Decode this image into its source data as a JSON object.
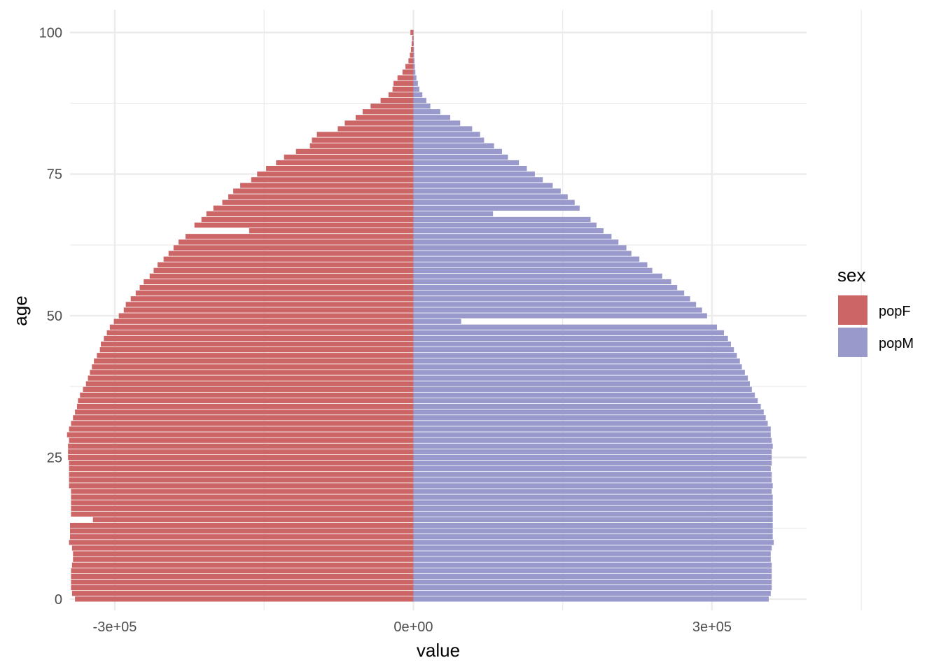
{
  "chart_data": {
    "type": "bar",
    "orientation": "horizontal",
    "title": "",
    "xlabel": "value",
    "ylabel": "age",
    "xlim": [
      -345000,
      395000
    ],
    "ylim": [
      -2,
      104
    ],
    "x_ticks": [
      {
        "value": -300000,
        "label": "-3e+05"
      },
      {
        "value": 0,
        "label": "0e+00"
      },
      {
        "value": 300000,
        "label": "3e+05"
      }
    ],
    "y_ticks": [
      {
        "value": 0,
        "label": "0"
      },
      {
        "value": 25,
        "label": "25"
      },
      {
        "value": 50,
        "label": "50"
      },
      {
        "value": 75,
        "label": "75"
      },
      {
        "value": 100,
        "label": "100"
      }
    ],
    "grid": true,
    "legend": {
      "title": "sex",
      "position": "right"
    },
    "ages": [
      0,
      1,
      2,
      3,
      4,
      5,
      6,
      7,
      8,
      9,
      10,
      11,
      12,
      13,
      14,
      15,
      16,
      17,
      18,
      19,
      20,
      21,
      22,
      23,
      24,
      25,
      26,
      27,
      28,
      29,
      30,
      31,
      32,
      33,
      34,
      35,
      36,
      37,
      38,
      39,
      40,
      41,
      42,
      43,
      44,
      45,
      46,
      47,
      48,
      49,
      50,
      51,
      52,
      53,
      54,
      55,
      56,
      57,
      58,
      59,
      60,
      61,
      62,
      63,
      64,
      65,
      66,
      67,
      68,
      69,
      70,
      71,
      72,
      73,
      74,
      75,
      76,
      77,
      78,
      79,
      80,
      81,
      82,
      83,
      84,
      85,
      86,
      87,
      88,
      89,
      90,
      91,
      92,
      93,
      94,
      95,
      96,
      97,
      98,
      99,
      100
    ],
    "series": [
      {
        "name": "popF",
        "color": "#cc6666",
        "values": [
          -340000,
          -343000,
          -344000,
          -344000,
          -344000,
          -344000,
          -343000,
          -342000,
          -342000,
          -343000,
          -346000,
          -345000,
          -345000,
          -345000,
          -322000,
          -344000,
          -344000,
          -344000,
          -344000,
          -344000,
          -346000,
          -346000,
          -346000,
          -346000,
          -346000,
          -347000,
          -347000,
          -347000,
          -346000,
          -348000,
          -346000,
          -344000,
          -342000,
          -340000,
          -338000,
          -337000,
          -335000,
          -332000,
          -329000,
          -327000,
          -325000,
          -323000,
          -321000,
          -318000,
          -315000,
          -314000,
          -311000,
          -308000,
          -305000,
          -301000,
          -296000,
          -291000,
          -289000,
          -284000,
          -279000,
          -275000,
          -271000,
          -265000,
          -261000,
          -257000,
          -251000,
          -246000,
          -241000,
          -236000,
          -229000,
          -165000,
          -220000,
          -213000,
          -208000,
          -201000,
          -192000,
          -186000,
          -181000,
          -174000,
          -163000,
          -157000,
          -148000,
          -138000,
          -130000,
          -118000,
          -104000,
          -102000,
          -97000,
          -76000,
          -69000,
          -58000,
          -51000,
          -43000,
          -33000,
          -25000,
          -21000,
          -20000,
          -16000,
          -11000,
          -8000,
          -5000,
          -3500,
          -2500,
          -1800,
          -1200,
          -3000
        ]
      },
      {
        "name": "popM",
        "color": "#9999cc",
        "values": [
          357000,
          359000,
          360000,
          360000,
          360000,
          360000,
          360000,
          359000,
          359000,
          360000,
          362000,
          361000,
          361000,
          361000,
          361000,
          361000,
          361000,
          361000,
          361000,
          360000,
          361000,
          360000,
          360000,
          359000,
          360000,
          360000,
          360000,
          361000,
          360000,
          359000,
          359000,
          356000,
          354000,
          352000,
          349000,
          346000,
          343000,
          340000,
          338000,
          336000,
          333000,
          330000,
          328000,
          325000,
          322000,
          319000,
          316000,
          312000,
          305000,
          48000,
          295000,
          290000,
          284000,
          278000,
          272000,
          265000,
          259000,
          250000,
          240000,
          235000,
          227000,
          219000,
          214000,
          206000,
          199000,
          191000,
          184000,
          178000,
          80000,
          167000,
          162000,
          155000,
          148000,
          140000,
          130000,
          122000,
          114000,
          106000,
          95000,
          89000,
          81000,
          71000,
          67000,
          59000,
          47000,
          37000,
          27000,
          17000,
          13000,
          9000,
          6000,
          4500,
          3000,
          2000,
          1500,
          1100,
          800,
          600,
          400,
          300,
          200
        ]
      }
    ]
  }
}
